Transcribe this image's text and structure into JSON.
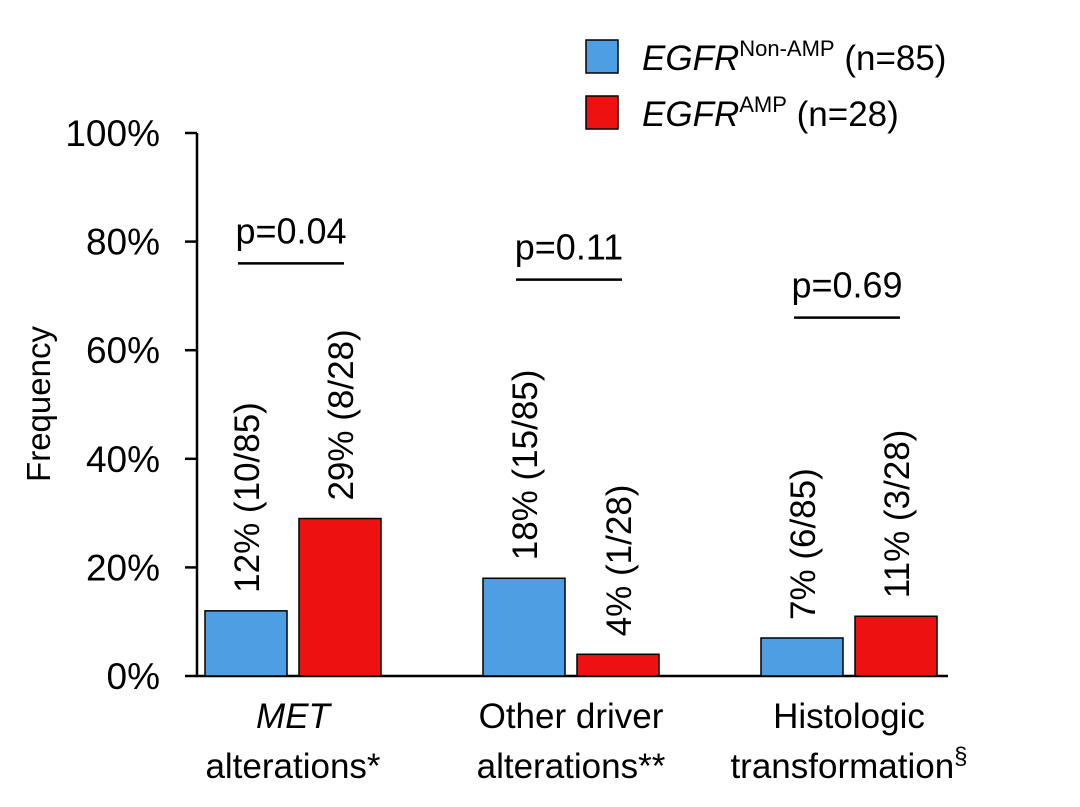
{
  "chart_data": {
    "type": "bar",
    "ylabel": "Frequency",
    "ylim": [
      0,
      100
    ],
    "yticks": [
      {
        "value": 0,
        "label": "0%"
      },
      {
        "value": 20,
        "label": "20%"
      },
      {
        "value": 40,
        "label": "40%"
      },
      {
        "value": 60,
        "label": "60%"
      },
      {
        "value": 80,
        "label": "80%"
      },
      {
        "value": 100,
        "label": "100%"
      }
    ],
    "grid": false,
    "legend_position": "top-right",
    "categories": [
      {
        "line1": "MET",
        "line1_italic": true,
        "line2": "alterations*",
        "line2_sup": ""
      },
      {
        "line1": "Other driver",
        "line1_italic": false,
        "line2": "alterations**",
        "line2_sup": ""
      },
      {
        "line1": "Histologic",
        "line1_italic": false,
        "line2": "transformation",
        "line2_sup": "§"
      }
    ],
    "series": [
      {
        "gene": "EGFR",
        "sup": "Non-AMP",
        "suffix": " (n=85)",
        "color": "#4e9ee3",
        "values": [
          12,
          18,
          7
        ],
        "labels": [
          "12% (10/85)",
          "18% (15/85)",
          "7% (6/85)"
        ]
      },
      {
        "gene": "EGFR",
        "sup": "AMP",
        "suffix": " (n=28)",
        "color": "#ee1111",
        "values": [
          29,
          4,
          11
        ],
        "labels": [
          "29% (8/28)",
          "4% (1/28)",
          "11% (3/28)"
        ]
      }
    ],
    "pvalues": [
      {
        "label": "p=0.04",
        "y": 76
      },
      {
        "label": "p=0.11",
        "y": 73
      },
      {
        "label": "p=0.69",
        "y": 66
      }
    ]
  }
}
